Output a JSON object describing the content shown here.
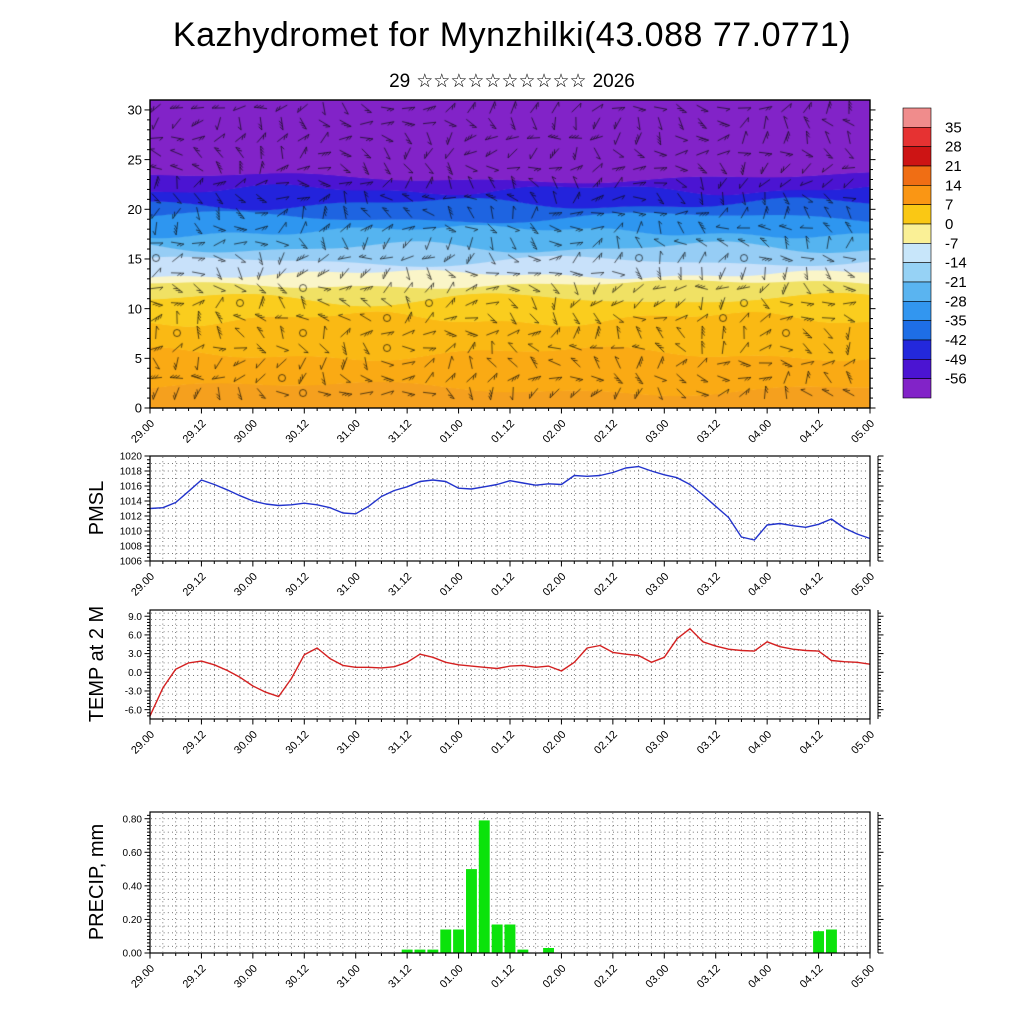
{
  "title": "Kazhydromet for Mynzhilki(43.088 77.0771)",
  "subtitle": {
    "day": "29",
    "stars": "☆☆☆☆☆☆☆☆☆☆",
    "year": "2026"
  },
  "x_axis": {
    "tick_labels": [
      "29.00",
      "29.12",
      "30.00",
      "30.12",
      "31.00",
      "31.12",
      "01.00",
      "01.12",
      "02.00",
      "02.12",
      "03.00",
      "03.12",
      "04.00",
      "04.12",
      "05.00"
    ],
    "major_tick_hours": 12,
    "minor_tick_hours": 3,
    "hours_span": 168
  },
  "chart_data": [
    {
      "name": "wind-temperature-cross-section",
      "type": "heatmap",
      "ylabel": "",
      "ylim": [
        0,
        31
      ],
      "y_tick_values": [
        0,
        5,
        10,
        15,
        20,
        25,
        30
      ],
      "y_tick_labels": [
        "0",
        "5",
        "10",
        "15",
        "20",
        "25",
        "30"
      ],
      "overlay": "wind-barbs",
      "colorbar": {
        "tick_labels": [
          "35",
          "28",
          "21",
          "14",
          "7",
          "0",
          "-7",
          "-14",
          "-21",
          "-28",
          "-35",
          "-42",
          "-49",
          "-56"
        ],
        "segment_colors_top_to_bottom": [
          "#F08C8C",
          "#E63232",
          "#CD1414",
          "#F06E14",
          "#FA9614",
          "#FAC814",
          "#FAF096",
          "#C8E6FA",
          "#96D2F5",
          "#5AB4F0",
          "#3296F0",
          "#1E6EE6",
          "#2328DC",
          "#4B14D2",
          "#8223C8"
        ]
      },
      "bands_bottom_to_top": [
        {
          "top": 2.0,
          "color": "#F5A01E"
        },
        {
          "top": 5.5,
          "color": "#FAAA14"
        },
        {
          "top": 9.0,
          "color": "#FAB914"
        },
        {
          "top": 11.0,
          "color": "#FACD1E"
        },
        {
          "top": 12.5,
          "color": "#F0E164"
        },
        {
          "top": 13.5,
          "color": "#FAF5C8"
        },
        {
          "top": 14.8,
          "color": "#C8E1FA"
        },
        {
          "top": 16.2,
          "color": "#96CDF5"
        },
        {
          "top": 17.8,
          "color": "#55B4F0"
        },
        {
          "top": 19.2,
          "color": "#2E96F0"
        },
        {
          "top": 20.6,
          "color": "#1E64E1"
        },
        {
          "top": 22.0,
          "color": "#2323DC"
        },
        {
          "top": 23.2,
          "color": "#4B14D2"
        },
        {
          "top": 31.0,
          "color": "#8223C8"
        }
      ]
    },
    {
      "name": "pmsl",
      "type": "line",
      "ylabel": "PMSL",
      "color": "#2233CC",
      "ylim": [
        1006,
        1020
      ],
      "y_tick_values": [
        1020,
        1018,
        1016,
        1014,
        1012,
        1010,
        1008,
        1006
      ],
      "y_tick_labels": [
        "1020",
        "1018",
        "1016",
        "1014",
        "1012",
        "1010",
        "1008",
        "1006"
      ],
      "x_start_hours": 0,
      "x_step_hours": 3,
      "values": [
        1013.0,
        1013.1,
        1013.8,
        1015.3,
        1016.8,
        1016.2,
        1015.5,
        1014.7,
        1014.0,
        1013.6,
        1013.4,
        1013.5,
        1013.7,
        1013.5,
        1013.1,
        1012.4,
        1012.3,
        1013.3,
        1014.6,
        1015.4,
        1015.9,
        1016.6,
        1016.8,
        1016.6,
        1015.7,
        1015.6,
        1015.9,
        1016.2,
        1016.7,
        1016.4,
        1016.1,
        1016.3,
        1016.2,
        1017.4,
        1017.3,
        1017.4,
        1017.8,
        1018.4,
        1018.6,
        1018.0,
        1017.5,
        1017.1,
        1016.2,
        1014.8,
        1013.3,
        1011.8,
        1009.2,
        1008.8,
        1010.8,
        1011.0,
        1010.7,
        1010.5,
        1010.9,
        1011.6,
        1010.4,
        1009.6,
        1009.0
      ]
    },
    {
      "name": "temp-2m",
      "type": "line",
      "ylabel": "TEMP at 2 M",
      "color": "#D42020",
      "ylim": [
        -7.5,
        10
      ],
      "y_tick_values": [
        9,
        6,
        3,
        0,
        -3,
        -6
      ],
      "y_tick_labels": [
        "9.0",
        "6.0",
        "3.0",
        "0.0",
        "-3.0",
        "-6.0"
      ],
      "x_start_hours": 0,
      "x_step_hours": 3,
      "values": [
        -7.0,
        -2.5,
        0.5,
        1.5,
        1.8,
        1.2,
        0.3,
        -0.8,
        -2.2,
        -3.2,
        -3.9,
        -1.0,
        2.8,
        3.9,
        2.2,
        1.1,
        0.8,
        0.8,
        0.7,
        0.9,
        1.6,
        2.9,
        2.4,
        1.6,
        1.2,
        1.0,
        0.8,
        0.6,
        1.0,
        1.1,
        0.8,
        1.0,
        0.2,
        1.6,
        3.9,
        4.3,
        3.2,
        2.9,
        2.7,
        1.6,
        2.4,
        5.4,
        7.0,
        4.9,
        4.2,
        3.7,
        3.5,
        3.4,
        4.9,
        4.1,
        3.7,
        3.5,
        3.4,
        1.9,
        1.7,
        1.6,
        1.3
      ]
    },
    {
      "name": "precip",
      "type": "bar",
      "ylabel": "PRECIP, mm",
      "color": "#0BE30B",
      "ylim": [
        0,
        0.84
      ],
      "y_tick_values": [
        0.8,
        0.6,
        0.4,
        0.2,
        0.0
      ],
      "y_tick_labels": [
        "0.80",
        "0.60",
        "0.40",
        "0.20",
        "0.00"
      ],
      "x_start_hours": 0,
      "x_step_hours": 3,
      "values": [
        0,
        0,
        0,
        0,
        0,
        0,
        0,
        0,
        0,
        0,
        0,
        0,
        0,
        0,
        0,
        0,
        0,
        0,
        0,
        0,
        0.02,
        0.02,
        0.02,
        0.14,
        0.14,
        0.5,
        0.79,
        0.17,
        0.17,
        0.02,
        0,
        0.03,
        0,
        0,
        0,
        0,
        0,
        0,
        0,
        0,
        0,
        0,
        0,
        0,
        0,
        0,
        0,
        0,
        0,
        0,
        0,
        0,
        0.13,
        0.14,
        0,
        0,
        0
      ]
    }
  ]
}
